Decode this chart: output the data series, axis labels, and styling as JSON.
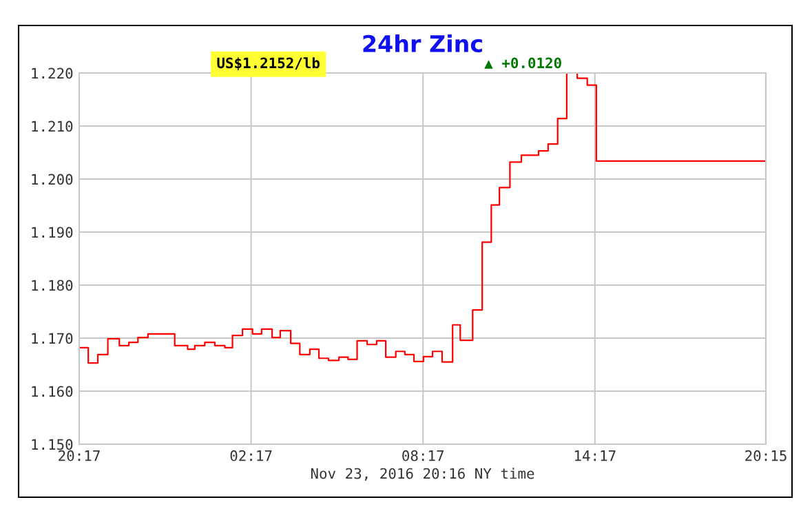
{
  "chart_data": {
    "type": "step",
    "title": "24hr Zinc",
    "xlabel": "Nov 23, 2016 20:16 NY time",
    "annotations": [
      "US$1.2152/lb",
      "▲ +0.0120"
    ],
    "series": [
      {
        "color": "#ff0000",
        "x": [
          "2016-11-22T20:17",
          "2016-11-22T20:36",
          "2016-11-22T20:56",
          "2016-11-22T21:17",
          "2016-11-22T21:41",
          "2016-11-22T22:01",
          "2016-11-22T22:20",
          "2016-11-22T22:41",
          "2016-11-22T23:37",
          "2016-11-23T00:04",
          "2016-11-23T00:19",
          "2016-11-23T00:40",
          "2016-11-23T01:01",
          "2016-11-23T01:22",
          "2016-11-23T01:38",
          "2016-11-23T01:59",
          "2016-11-23T02:20",
          "2016-11-23T02:39",
          "2016-11-23T03:01",
          "2016-11-23T03:18",
          "2016-11-23T03:40",
          "2016-11-23T03:59",
          "2016-11-23T04:20",
          "2016-11-23T04:39",
          "2016-11-23T04:59",
          "2016-11-23T05:21",
          "2016-11-23T05:40",
          "2016-11-23T05:59",
          "2016-11-23T06:20",
          "2016-11-23T06:40",
          "2016-11-23T06:59",
          "2016-11-23T07:20",
          "2016-11-23T07:39",
          "2016-11-23T07:58",
          "2016-11-23T08:18",
          "2016-11-23T08:37",
          "2016-11-23T08:57",
          "2016-11-23T09:19",
          "2016-11-23T09:35",
          "2016-11-23T10:01",
          "2016-11-23T10:21",
          "2016-11-23T10:40",
          "2016-11-23T10:57",
          "2016-11-23T11:19",
          "2016-11-23T11:43",
          "2016-11-23T12:19",
          "2016-11-23T12:39",
          "2016-11-23T12:59",
          "2016-11-23T13:18",
          "2016-11-23T13:40",
          "2016-11-23T14:01",
          "2016-11-23T14:20",
          "2016-11-23T20:15"
        ],
        "values": [
          1.1682,
          1.1653,
          1.1669,
          1.1699,
          1.1686,
          1.1692,
          1.1701,
          1.1708,
          1.1686,
          1.1679,
          1.1686,
          1.1692,
          1.1686,
          1.1682,
          1.1705,
          1.1717,
          1.1708,
          1.1717,
          1.1701,
          1.1714,
          1.169,
          1.1669,
          1.1679,
          1.1662,
          1.1658,
          1.1664,
          1.166,
          1.1695,
          1.1688,
          1.1695,
          1.1664,
          1.1675,
          1.1669,
          1.1656,
          1.1665,
          1.1675,
          1.1655,
          1.1725,
          1.1696,
          1.1753,
          1.1881,
          1.1951,
          1.1984,
          1.2032,
          1.2045,
          1.2053,
          1.2066,
          1.2114,
          1.22,
          1.219,
          1.2177,
          1.2034,
          1.2034
        ]
      }
    ],
    "xlim": [
      "2016-11-22T20:17",
      "2016-11-23T20:15"
    ],
    "xticks": [
      {
        "value": "2016-11-22T20:17",
        "label": "20:17"
      },
      {
        "value": "2016-11-23T02:17",
        "label": "02:17"
      },
      {
        "value": "2016-11-23T08:17",
        "label": "08:17"
      },
      {
        "value": "2016-11-23T14:17",
        "label": "14:17"
      },
      {
        "value": "2016-11-23T20:15",
        "label": "20:15"
      }
    ],
    "ylim": [
      1.15,
      1.22
    ],
    "yticks": [
      {
        "value": 1.15,
        "label": "1.150"
      },
      {
        "value": 1.16,
        "label": "1.160"
      },
      {
        "value": 1.17,
        "label": "1.170"
      },
      {
        "value": 1.18,
        "label": "1.180"
      },
      {
        "value": 1.19,
        "label": "1.190"
      },
      {
        "value": 1.2,
        "label": "1.200"
      },
      {
        "value": 1.21,
        "label": "1.210"
      },
      {
        "value": 1.22,
        "label": "1.220"
      }
    ],
    "grid": true
  }
}
